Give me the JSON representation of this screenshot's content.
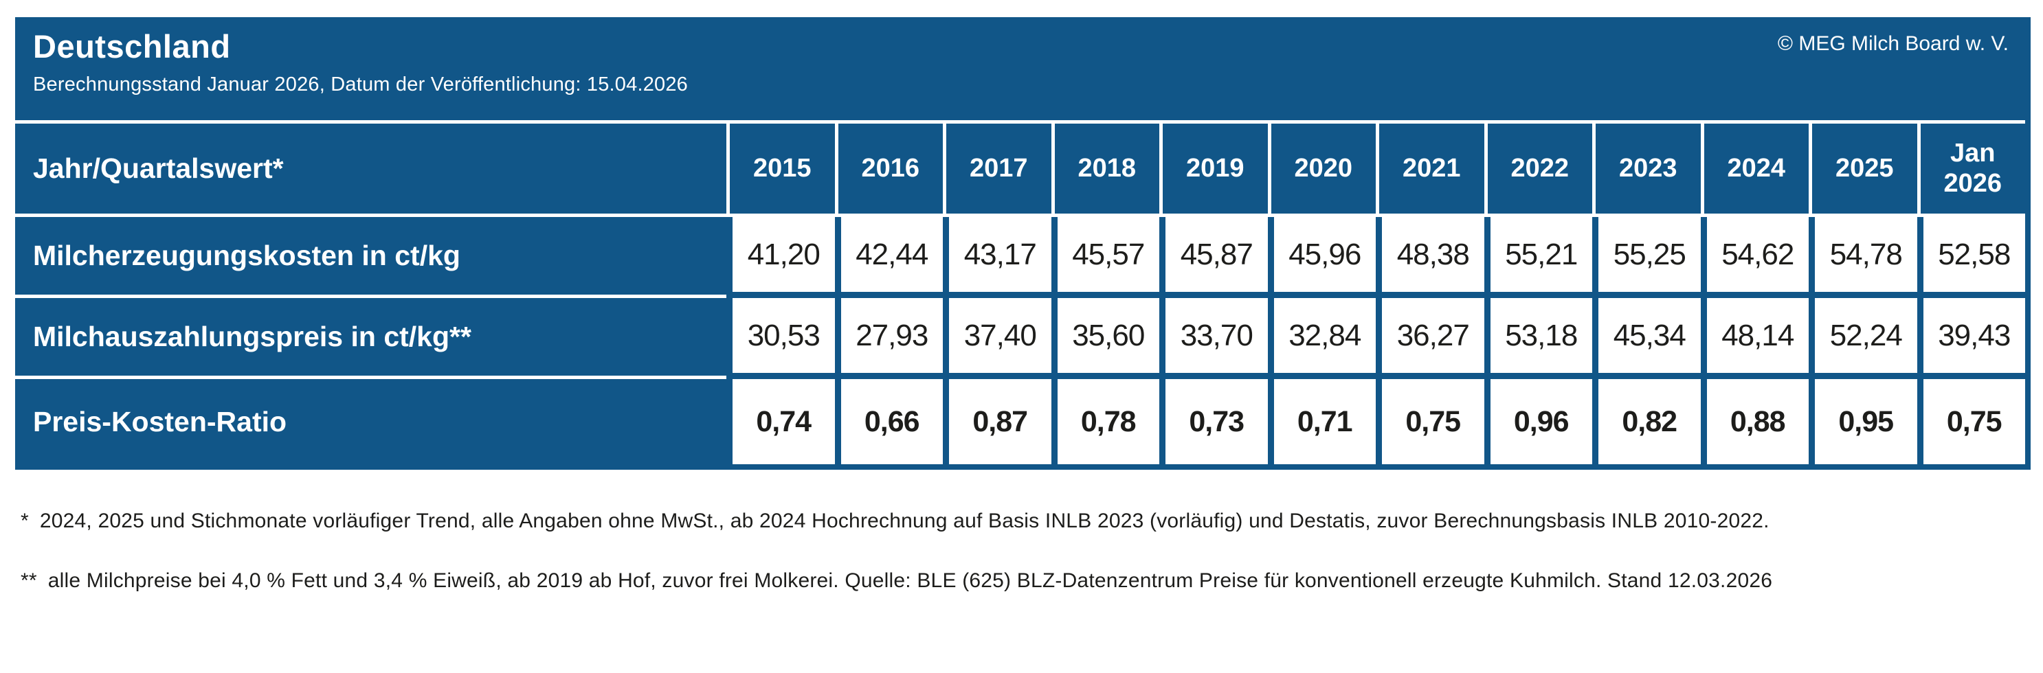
{
  "header": {
    "title": "Deutschland",
    "subtitle": "Berechnungsstand Januar 2026, Datum der Veröffentlichung: 15.04.2026",
    "copyright": "© MEG Milch Board w. V."
  },
  "table": {
    "corner_label": "Jahr/Quartalswert*",
    "columns": [
      "2015",
      "2016",
      "2017",
      "2018",
      "2019",
      "2020",
      "2021",
      "2022",
      "2023",
      "2024",
      "2025",
      "Jan 2026"
    ],
    "rows": [
      {
        "label": "Milcherzeugungskosten in ct/kg",
        "values": [
          "41,20",
          "42,44",
          "43,17",
          "45,57",
          "45,87",
          "45,96",
          "48,38",
          "55,21",
          "55,25",
          "54,62",
          "54,78",
          "52,58"
        ]
      },
      {
        "label": "Milchauszahlungspreis in ct/kg**",
        "values": [
          "30,53",
          "27,93",
          "37,40",
          "35,60",
          "33,70",
          "32,84",
          "36,27",
          "53,18",
          "45,34",
          "48,14",
          "52,24",
          "39,43"
        ]
      },
      {
        "label": "Preis-Kosten-Ratio",
        "values": [
          "0,74",
          "0,66",
          "0,87",
          "0,78",
          "0,73",
          "0,71",
          "0,75",
          "0,96",
          "0,82",
          "0,88",
          "0,95",
          "0,75"
        ]
      }
    ]
  },
  "footnotes": [
    {
      "marker": "*",
      "text": "2024, 2025 und Stichmonate vorläufiger Trend, alle Angaben ohne MwSt., ab 2024 Hochrechnung auf Basis INLB 2023 (vorläufig) und Destatis, zuvor Berechnungsbasis INLB 2010-2022."
    },
    {
      "marker": "**",
      "text": "alle Milchpreise bei 4,0 % Fett und 3,4 % Eiweiß, ab 2019 ab Hof, zuvor frei Molkerei. Quelle: BLE (625) BLZ-Datenzentrum Preise für konventionell erzeugte Kuhmilch. Stand 12.03.2026"
    }
  ],
  "colors": {
    "primary_blue": "#115688",
    "text_dark": "#1d1d1b",
    "white": "#ffffff"
  },
  "chart_data": {
    "type": "table",
    "title": "Deutschland",
    "subtitle": "Berechnungsstand Januar 2026, Datum der Veröffentlichung: 15.04.2026",
    "source": "© MEG Milch Board w. V.",
    "categories": [
      "2015",
      "2016",
      "2017",
      "2018",
      "2019",
      "2020",
      "2021",
      "2022",
      "2023",
      "2024",
      "2025",
      "Jan 2026"
    ],
    "series": [
      {
        "name": "Milcherzeugungskosten in ct/kg",
        "values": [
          41.2,
          42.44,
          43.17,
          45.57,
          45.87,
          45.96,
          48.38,
          55.21,
          55.25,
          54.62,
          54.78,
          52.58
        ]
      },
      {
        "name": "Milchauszahlungspreis in ct/kg**",
        "values": [
          30.53,
          27.93,
          37.4,
          35.6,
          33.7,
          32.84,
          36.27,
          53.18,
          45.34,
          48.14,
          52.24,
          39.43
        ]
      },
      {
        "name": "Preis-Kosten-Ratio",
        "values": [
          0.74,
          0.66,
          0.87,
          0.78,
          0.73,
          0.71,
          0.75,
          0.96,
          0.82,
          0.88,
          0.95,
          0.75
        ]
      }
    ]
  }
}
